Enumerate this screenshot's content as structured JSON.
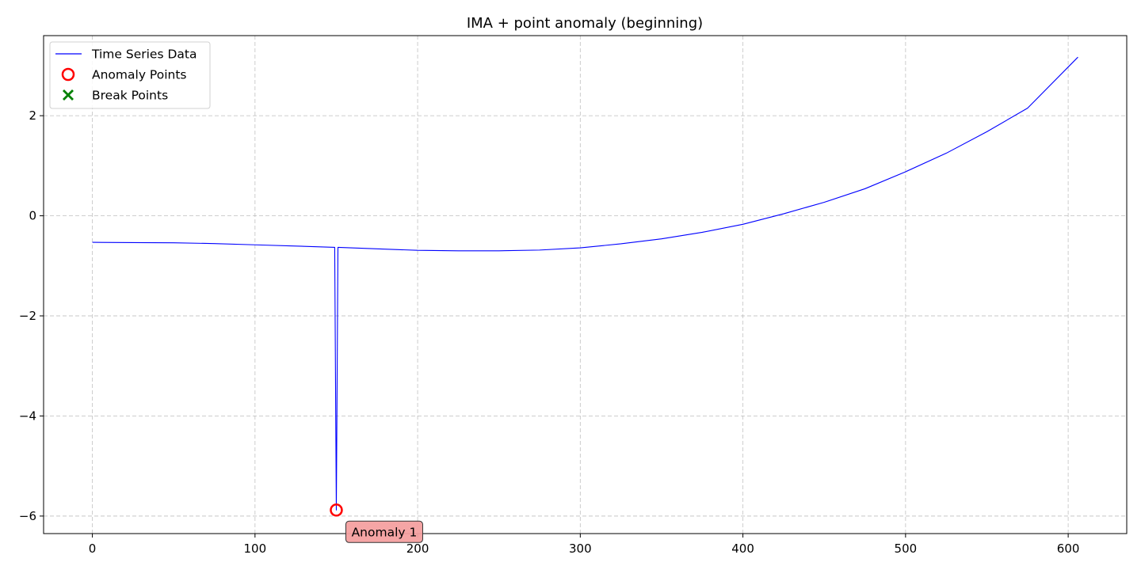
{
  "chart_data": {
    "type": "line",
    "title": "IMA + point anomaly (beginning)",
    "xlabel": "",
    "ylabel": "",
    "xlim": [
      -30,
      636
    ],
    "ylim": [
      -6.35,
      3.6
    ],
    "grid": true,
    "legend_position": "top-left",
    "x_ticks": [
      0,
      100,
      200,
      300,
      400,
      500,
      600
    ],
    "y_ticks": [
      -6,
      -4,
      -2,
      0,
      2
    ],
    "series": [
      {
        "name": "Time Series Data",
        "color": "#0000ff",
        "points": [
          [
            0,
            -0.53
          ],
          [
            25,
            -0.535
          ],
          [
            50,
            -0.54
          ],
          [
            75,
            -0.555
          ],
          [
            100,
            -0.58
          ],
          [
            125,
            -0.605
          ],
          [
            149,
            -0.63
          ],
          [
            150,
            -5.88
          ],
          [
            151,
            -0.63
          ],
          [
            175,
            -0.66
          ],
          [
            200,
            -0.69
          ],
          [
            225,
            -0.7
          ],
          [
            250,
            -0.7
          ],
          [
            275,
            -0.685
          ],
          [
            300,
            -0.64
          ],
          [
            325,
            -0.56
          ],
          [
            350,
            -0.46
          ],
          [
            375,
            -0.33
          ],
          [
            400,
            -0.17
          ],
          [
            425,
            0.04
          ],
          [
            450,
            0.27
          ],
          [
            475,
            0.54
          ],
          [
            500,
            0.88
          ],
          [
            525,
            1.25
          ],
          [
            550,
            1.68
          ],
          [
            575,
            2.15
          ],
          [
            606,
            3.17
          ]
        ]
      }
    ],
    "anomaly_points": {
      "name": "Anomaly Points",
      "color": "#ff0000",
      "points": [
        [
          150,
          -5.88
        ]
      ]
    },
    "break_points": {
      "name": "Break Points",
      "color": "#008000",
      "points": []
    },
    "annotations": [
      {
        "text": "Anomaly 1",
        "x": 150,
        "y": -5.88,
        "color": "#f4a0a0"
      }
    ]
  }
}
